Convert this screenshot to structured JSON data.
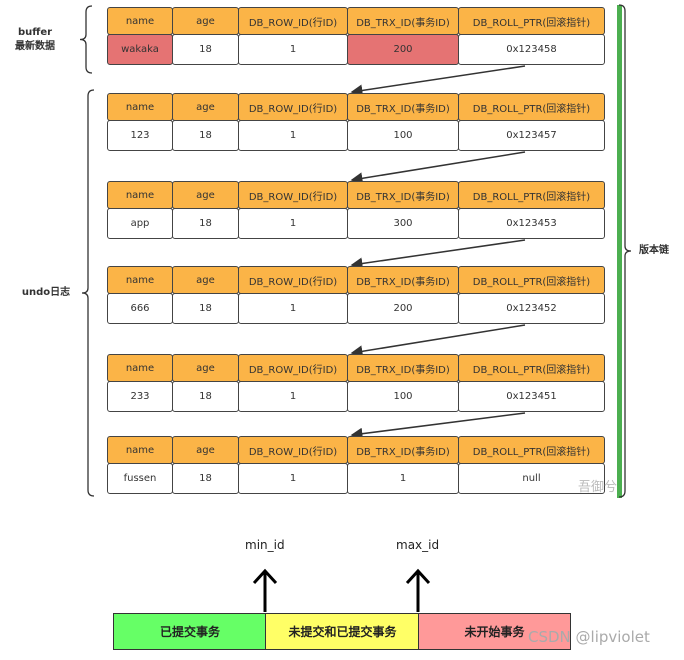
{
  "headers": [
    "name",
    "age",
    "DB_ROW_ID(行ID)",
    "DB_TRX_ID(事务ID)",
    "DB_ROLL_PTR(回滚指针)"
  ],
  "buffer": {
    "label_line1": "buffer",
    "label_line2": "最新数据",
    "row": [
      "wakaka",
      "18",
      "1",
      "200",
      "0x123458"
    ],
    "highlight_color": "#e57373"
  },
  "undo": {
    "label": "undo日志",
    "rows": [
      [
        "123",
        "18",
        "1",
        "100",
        "0x123457"
      ],
      [
        "app",
        "18",
        "1",
        "300",
        "0x123453"
      ],
      [
        "666",
        "18",
        "1",
        "200",
        "0x123452"
      ],
      [
        "233",
        "18",
        "1",
        "100",
        "0x123451"
      ],
      [
        "fussen",
        "18",
        "1",
        "1",
        "null"
      ]
    ]
  },
  "version_chain": {
    "label": "版本链",
    "color": "#4caf50"
  },
  "header_color": "#fbb447",
  "range": {
    "min_label": "min_id",
    "max_label": "max_id",
    "segments": [
      {
        "label": "已提交事务",
        "color": "#66ff66"
      },
      {
        "label": "未提交和已提交事务",
        "color": "#ffff66"
      },
      {
        "label": "未开始事务",
        "color": "#ff9999"
      }
    ]
  },
  "watermarks": {
    "wechat": "吾御兮",
    "csdn": "CSDN @lipviolet"
  }
}
